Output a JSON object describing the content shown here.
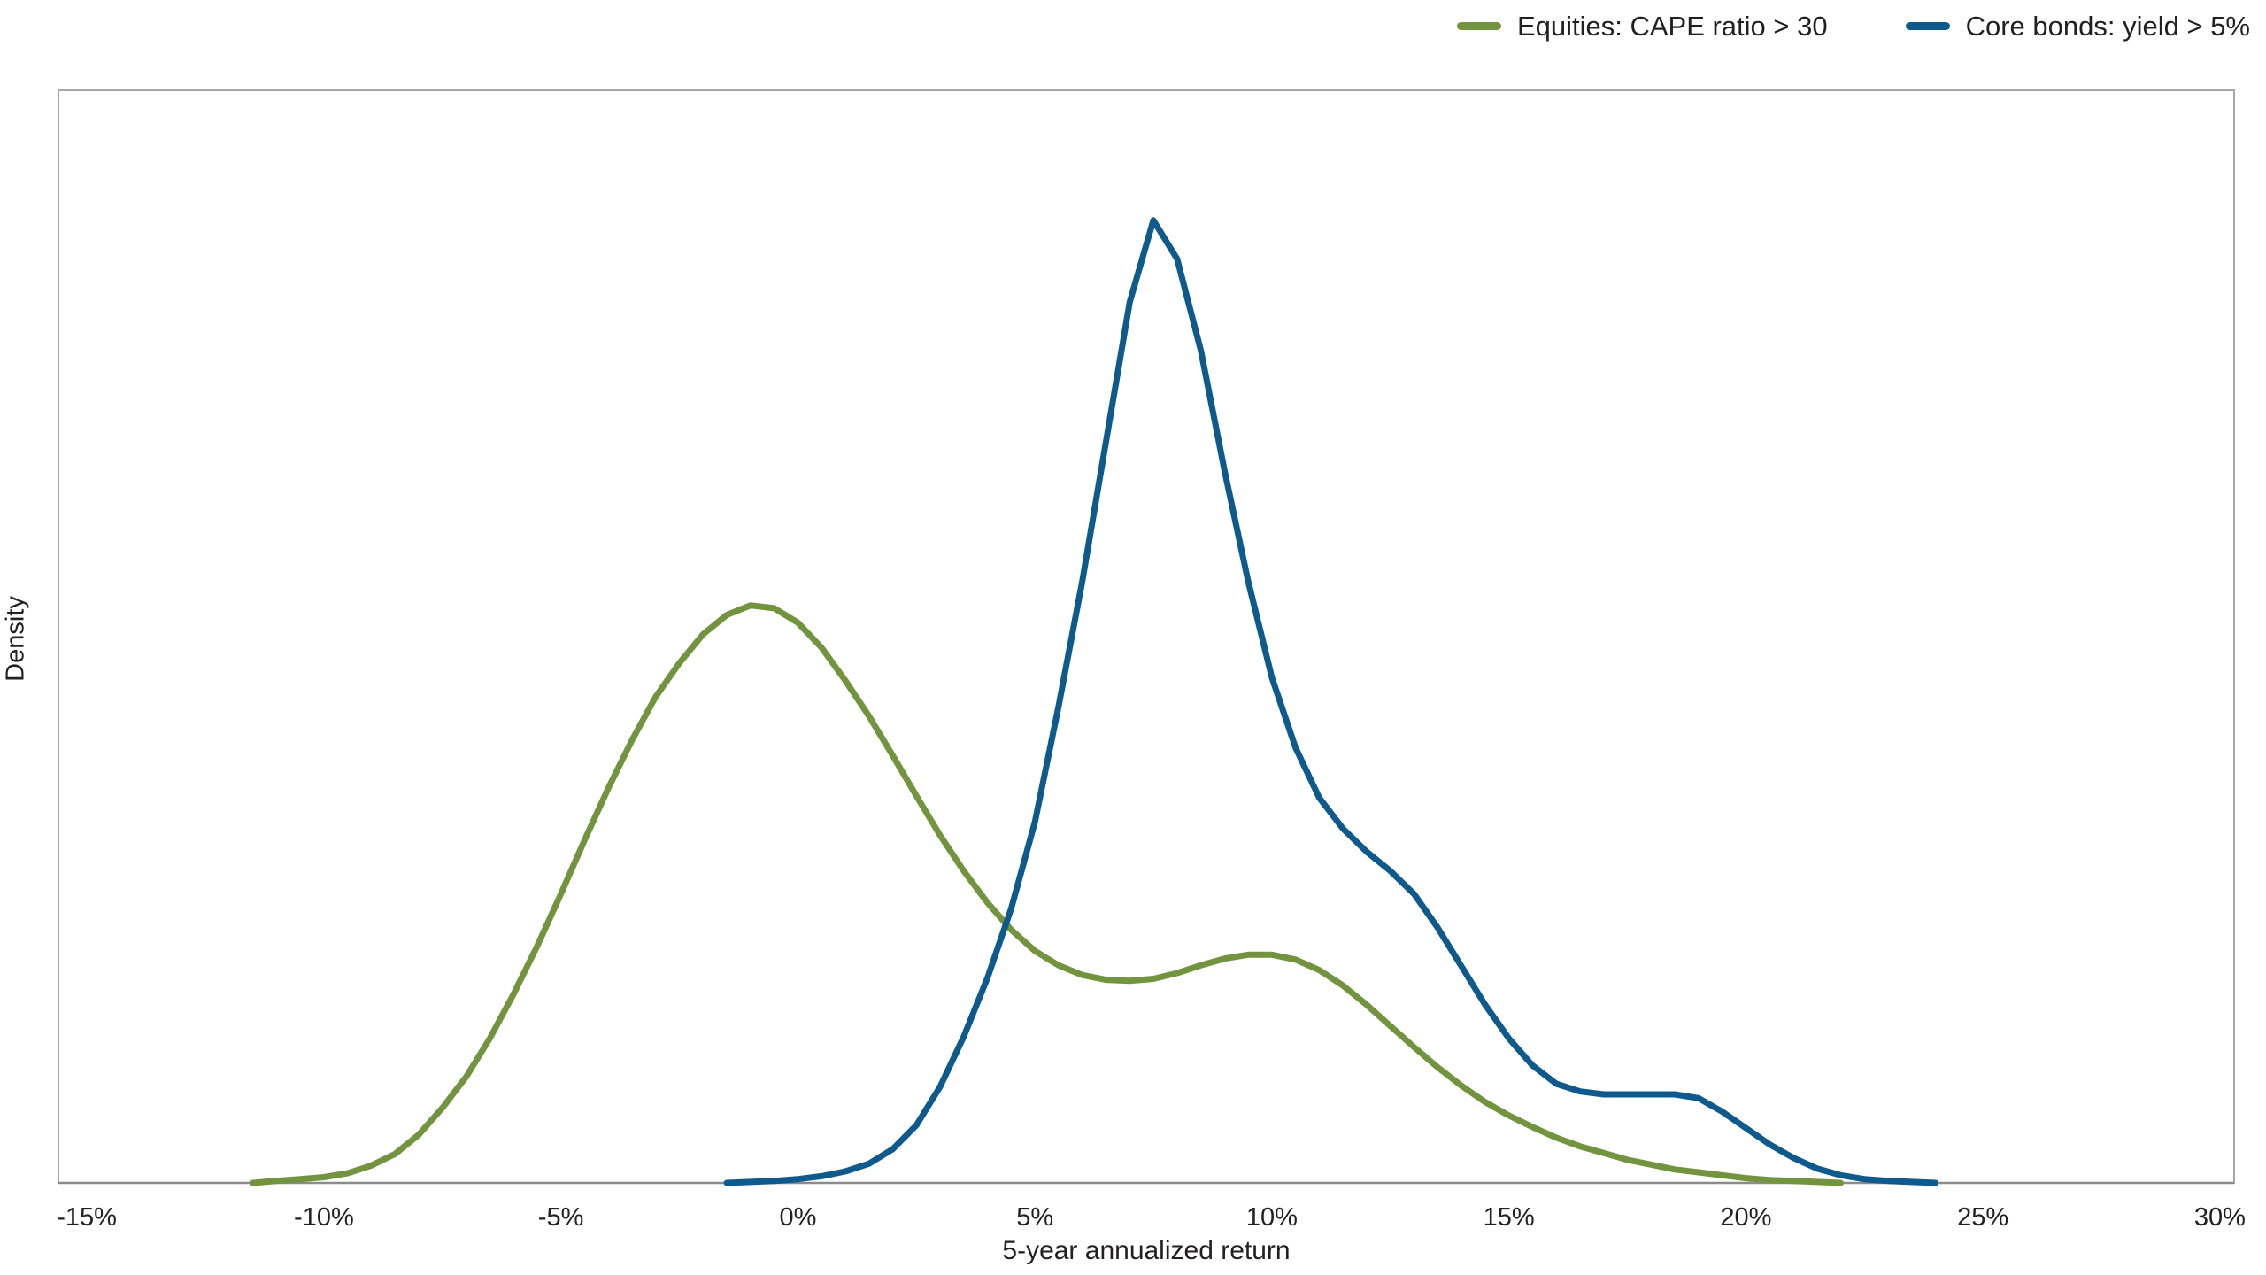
{
  "chart_data": {
    "type": "line",
    "title": "",
    "subtitle": "",
    "xlabel": "5-year annualized return",
    "ylabel": "Density",
    "x_ticks": [
      -15,
      -10,
      -5,
      0,
      5,
      10,
      15,
      20,
      25,
      30
    ],
    "x_tick_labels": [
      "-15%",
      "-10%",
      "-5%",
      "0%",
      "5%",
      "10%",
      "15%",
      "20%",
      "25%",
      "30%"
    ],
    "xlim": [
      -15.6,
      30.3
    ],
    "ylim": [
      0,
      1.135
    ],
    "grid": false,
    "legend_position": "top-right",
    "y_axis_has_tick_labels": false,
    "series": [
      {
        "name": "Equities: CAPE ratio > 30",
        "color": "#72943F",
        "x": [
          -11.5,
          -11,
          -10.5,
          -10,
          -9.5,
          -9,
          -8.5,
          -8,
          -7.5,
          -7,
          -6.5,
          -6,
          -5.5,
          -5,
          -4.5,
          -4,
          -3.5,
          -3,
          -2.5,
          -2,
          -1.5,
          -1,
          -0.5,
          0,
          0.5,
          1,
          1.5,
          2,
          2.5,
          3,
          3.5,
          4,
          4.5,
          5,
          5.5,
          6,
          6.5,
          7,
          7.5,
          8,
          8.5,
          9,
          9.5,
          10,
          10.5,
          11,
          11.5,
          12,
          12.5,
          13,
          13.5,
          14,
          14.5,
          15,
          15.5,
          16,
          16.5,
          17,
          17.5,
          18,
          18.5,
          19,
          19.5,
          20,
          20.5,
          21,
          21.5,
          22
        ],
        "y": [
          0,
          0.002,
          0.004,
          0.006,
          0.01,
          0.018,
          0.03,
          0.05,
          0.078,
          0.11,
          0.15,
          0.196,
          0.246,
          0.3,
          0.356,
          0.41,
          0.46,
          0.505,
          0.54,
          0.57,
          0.59,
          0.6,
          0.597,
          0.582,
          0.556,
          0.522,
          0.485,
          0.444,
          0.402,
          0.361,
          0.324,
          0.291,
          0.263,
          0.241,
          0.226,
          0.216,
          0.211,
          0.21,
          0.212,
          0.218,
          0.226,
          0.233,
          0.237,
          0.237,
          0.232,
          0.221,
          0.205,
          0.185,
          0.163,
          0.141,
          0.12,
          0.101,
          0.084,
          0.07,
          0.058,
          0.047,
          0.038,
          0.031,
          0.024,
          0.019,
          0.014,
          0.011,
          0.008,
          0.005,
          0.003,
          0.002,
          0.001,
          0
        ]
      },
      {
        "name": "Core bonds: yield > 5%",
        "color": "#0F5A8C",
        "x": [
          -1.5,
          -1,
          -0.5,
          0,
          0.5,
          1,
          1.5,
          2,
          2.5,
          3,
          3.5,
          4,
          4.5,
          5,
          5.5,
          6,
          6.5,
          7,
          7.5,
          8,
          8.5,
          9,
          9.5,
          10,
          10.5,
          11,
          11.5,
          12,
          12.5,
          13,
          13.5,
          14,
          14.5,
          15,
          15.5,
          16,
          16.5,
          17,
          17.5,
          18,
          18.5,
          19,
          19.5,
          20,
          20.5,
          21,
          21.5,
          22,
          22.5,
          23,
          23.5,
          24
        ],
        "y": [
          0,
          0.001,
          0.002,
          0.004,
          0.007,
          0.012,
          0.02,
          0.035,
          0.06,
          0.1,
          0.152,
          0.213,
          0.285,
          0.375,
          0.495,
          0.625,
          0.77,
          0.915,
          1.0,
          0.96,
          0.865,
          0.74,
          0.625,
          0.525,
          0.452,
          0.4,
          0.368,
          0.344,
          0.324,
          0.3,
          0.265,
          0.225,
          0.185,
          0.15,
          0.122,
          0.103,
          0.095,
          0.092,
          0.092,
          0.092,
          0.092,
          0.088,
          0.074,
          0.057,
          0.04,
          0.026,
          0.015,
          0.008,
          0.004,
          0.002,
          0.001,
          0
        ]
      }
    ]
  }
}
